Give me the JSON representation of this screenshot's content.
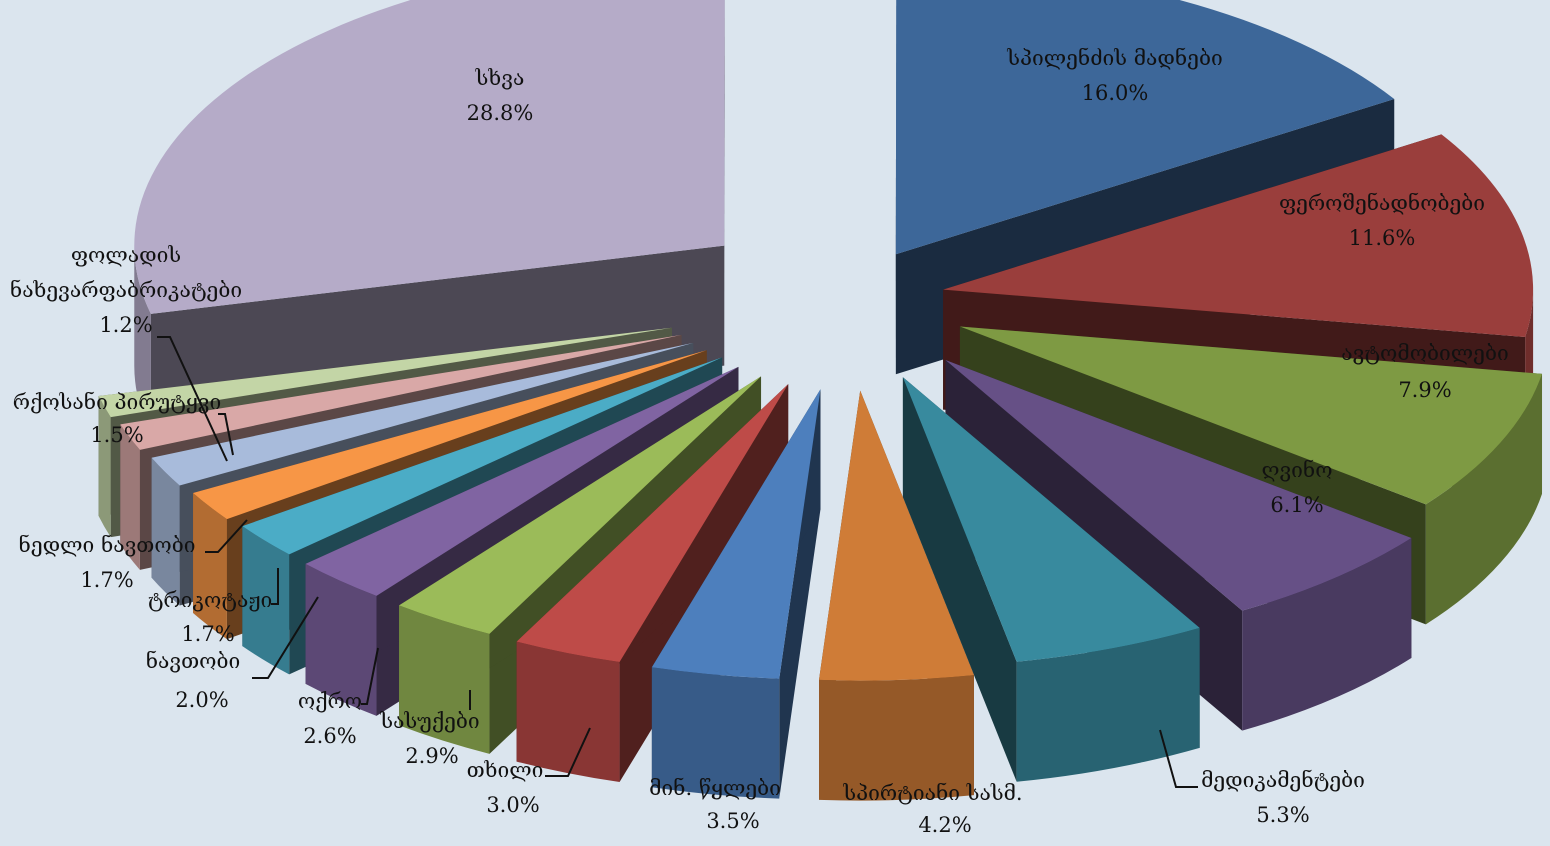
{
  "chart_data": {
    "type": "pie",
    "title": "",
    "exploded": true,
    "style": "3d",
    "slices": [
      {
        "label": "სპილენძის მადნები",
        "value": 16.0,
        "value_label": "16.0%",
        "color": "#3d6799",
        "leader": false
      },
      {
        "label": "ფეროშენადნობები",
        "value": 11.6,
        "value_label": "11.6%",
        "color": "#9a3e3c",
        "leader": false
      },
      {
        "label": "ავტომობილები",
        "value": 7.9,
        "value_label": "7.9%",
        "color": "#7e9a43",
        "leader": false
      },
      {
        "label": "ღვინო",
        "value": 6.1,
        "value_label": "6.1%",
        "color": "#665086",
        "leader": false
      },
      {
        "label": "მედიკამენტები",
        "value": 5.3,
        "value_label": "5.3%",
        "color": "#388a9e",
        "leader": true
      },
      {
        "label": "სპირტიანი სასმ.",
        "value": 4.2,
        "value_label": "4.2%",
        "color": "#cf7c37",
        "leader": false
      },
      {
        "label": "მინ. წყლები",
        "value": 3.5,
        "value_label": "3.5%",
        "color": "#4d7fbd",
        "leader": false
      },
      {
        "label": "თხილი",
        "value": 3.0,
        "value_label": "3.0%",
        "color": "#be4b48",
        "leader": true
      },
      {
        "label": "სასუქები",
        "value": 2.9,
        "value_label": "2.9%",
        "color": "#9bbb59",
        "leader": true
      },
      {
        "label": "ოქრო",
        "value": 2.6,
        "value_label": "2.6%",
        "color": "#8064a2",
        "leader": true
      },
      {
        "label": "ნავთობი",
        "value": 2.0,
        "value_label": "2.0%",
        "color": "#4bacc6",
        "leader": true
      },
      {
        "label": "ტრიკოტაჟი",
        "value": 1.7,
        "value_label": "1.7%",
        "color": "#f79646",
        "leader": true
      },
      {
        "label": "ნედლი ნავთობი",
        "value": 1.7,
        "value_label": "1.7%",
        "color": "#a8bbdb",
        "leader": true
      },
      {
        "label": "რქოსანი პირუტყვი",
        "value": 1.5,
        "value_label": "1.5%",
        "color": "#d9a8a7",
        "leader": true
      },
      {
        "label": "ფოლადის ნახევარფაბრიკატები",
        "value": 1.2,
        "value_label": "1.2%",
        "color": "#c3d5a6",
        "leader": true
      },
      {
        "label": "სხვა",
        "value": 28.8,
        "value_label": "28.8%",
        "color": "#b5abc8",
        "leader": false
      }
    ]
  }
}
